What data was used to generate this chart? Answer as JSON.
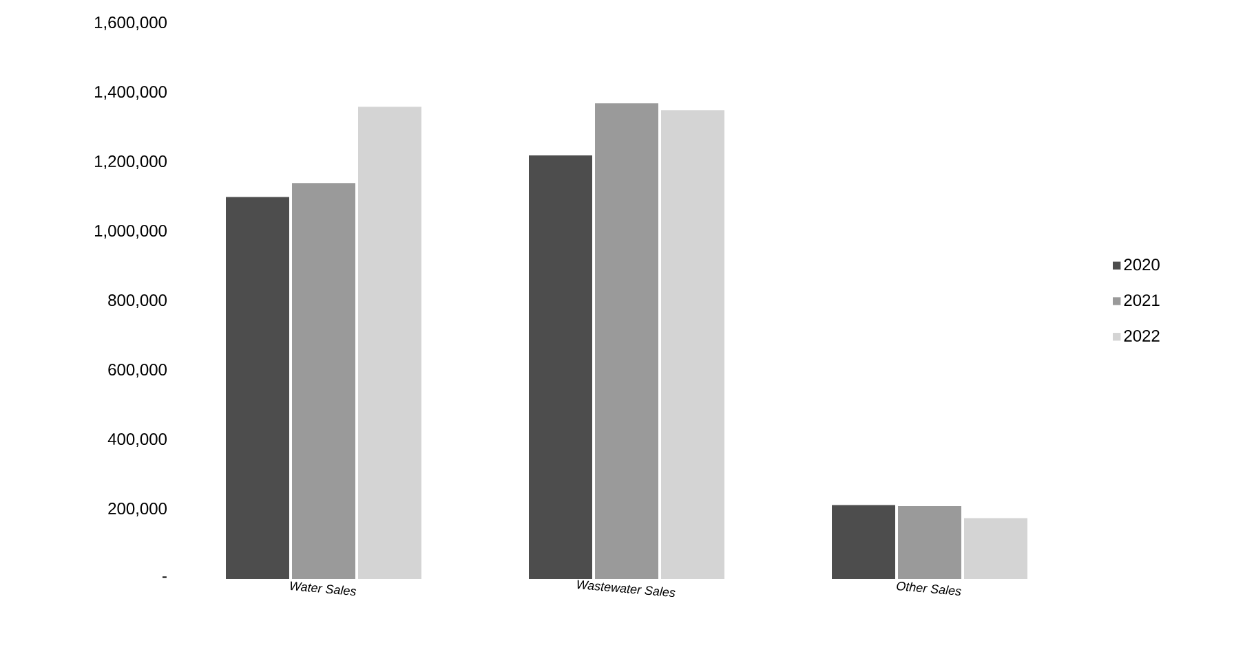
{
  "chart_data": {
    "type": "bar",
    "categories": [
      "Water Sales",
      "Wastewater Sales",
      "Other Sales"
    ],
    "series": [
      {
        "name": "2020",
        "color": "#4d4d4d",
        "values": [
          1100000,
          1220000,
          213000
        ]
      },
      {
        "name": "2021",
        "color": "#9a9a9a",
        "values": [
          1140000,
          1370000,
          210000
        ]
      },
      {
        "name": "2022",
        "color": "#d4d4d4",
        "values": [
          1360000,
          1350000,
          175000
        ]
      }
    ],
    "ylim": [
      0,
      1600000
    ],
    "yticks": [
      {
        "value": 0,
        "label": "-"
      },
      {
        "value": 200000,
        "label": "200,000"
      },
      {
        "value": 400000,
        "label": "400,000"
      },
      {
        "value": 600000,
        "label": "600,000"
      },
      {
        "value": 800000,
        "label": "800,000"
      },
      {
        "value": 1000000,
        "label": "1,000,000"
      },
      {
        "value": 1200000,
        "label": "1,200,000"
      },
      {
        "value": 1400000,
        "label": "1,400,000"
      },
      {
        "value": 1600000,
        "label": "1,600,000"
      }
    ],
    "legend": "right",
    "grid": false
  }
}
